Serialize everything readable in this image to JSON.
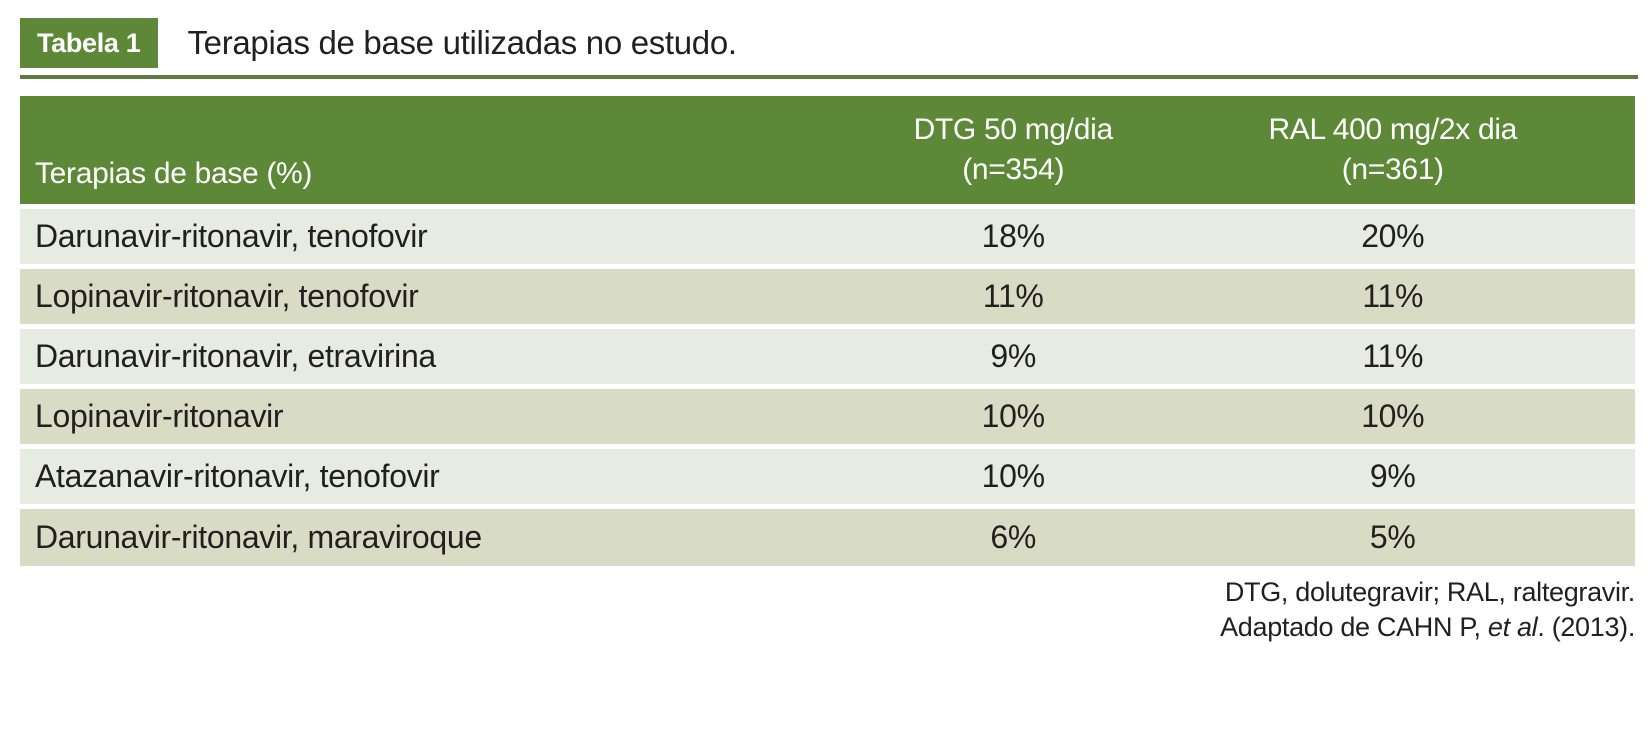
{
  "caption": {
    "badge": "Tabela 1",
    "title": "Terapias de base utilizadas no estudo."
  },
  "table": {
    "header": {
      "therapy": "Terapias de base (%)",
      "dtg_line1": "DTG 50 mg/dia",
      "dtg_line2": "(n=354)",
      "ral_line1": "RAL 400 mg/2x dia",
      "ral_line2": "(n=361)"
    },
    "rows": [
      {
        "therapy": "Darunavir-ritonavir, tenofovir",
        "dtg": "18%",
        "ral": "20%"
      },
      {
        "therapy": "Lopinavir-ritonavir, tenofovir",
        "dtg": "11%",
        "ral": "11%"
      },
      {
        "therapy": "Darunavir-ritonavir, etravirina",
        "dtg": "9%",
        "ral": "11%"
      },
      {
        "therapy": "Lopinavir-ritonavir",
        "dtg": "10%",
        "ral": "10%"
      },
      {
        "therapy": "Atazanavir-ritonavir, tenofovir",
        "dtg": "10%",
        "ral": "9%"
      },
      {
        "therapy": "Darunavir-ritonavir, maraviroque",
        "dtg": "6%",
        "ral": "5%"
      }
    ]
  },
  "footnote": {
    "abbreviations": "DTG, dolutegravir; RAL, raltegravir.",
    "source_prefix": "Adaptado de CAHN P, ",
    "source_italic": "et al",
    "source_suffix": ". (2013)."
  },
  "colors": {
    "header_green": "#5c8838",
    "rule_green": "#5e7a3c",
    "row_light": "#e6ece1",
    "row_dark": "#d8dcc5",
    "header_text": "#ffffff",
    "body_text": "#231f20"
  }
}
